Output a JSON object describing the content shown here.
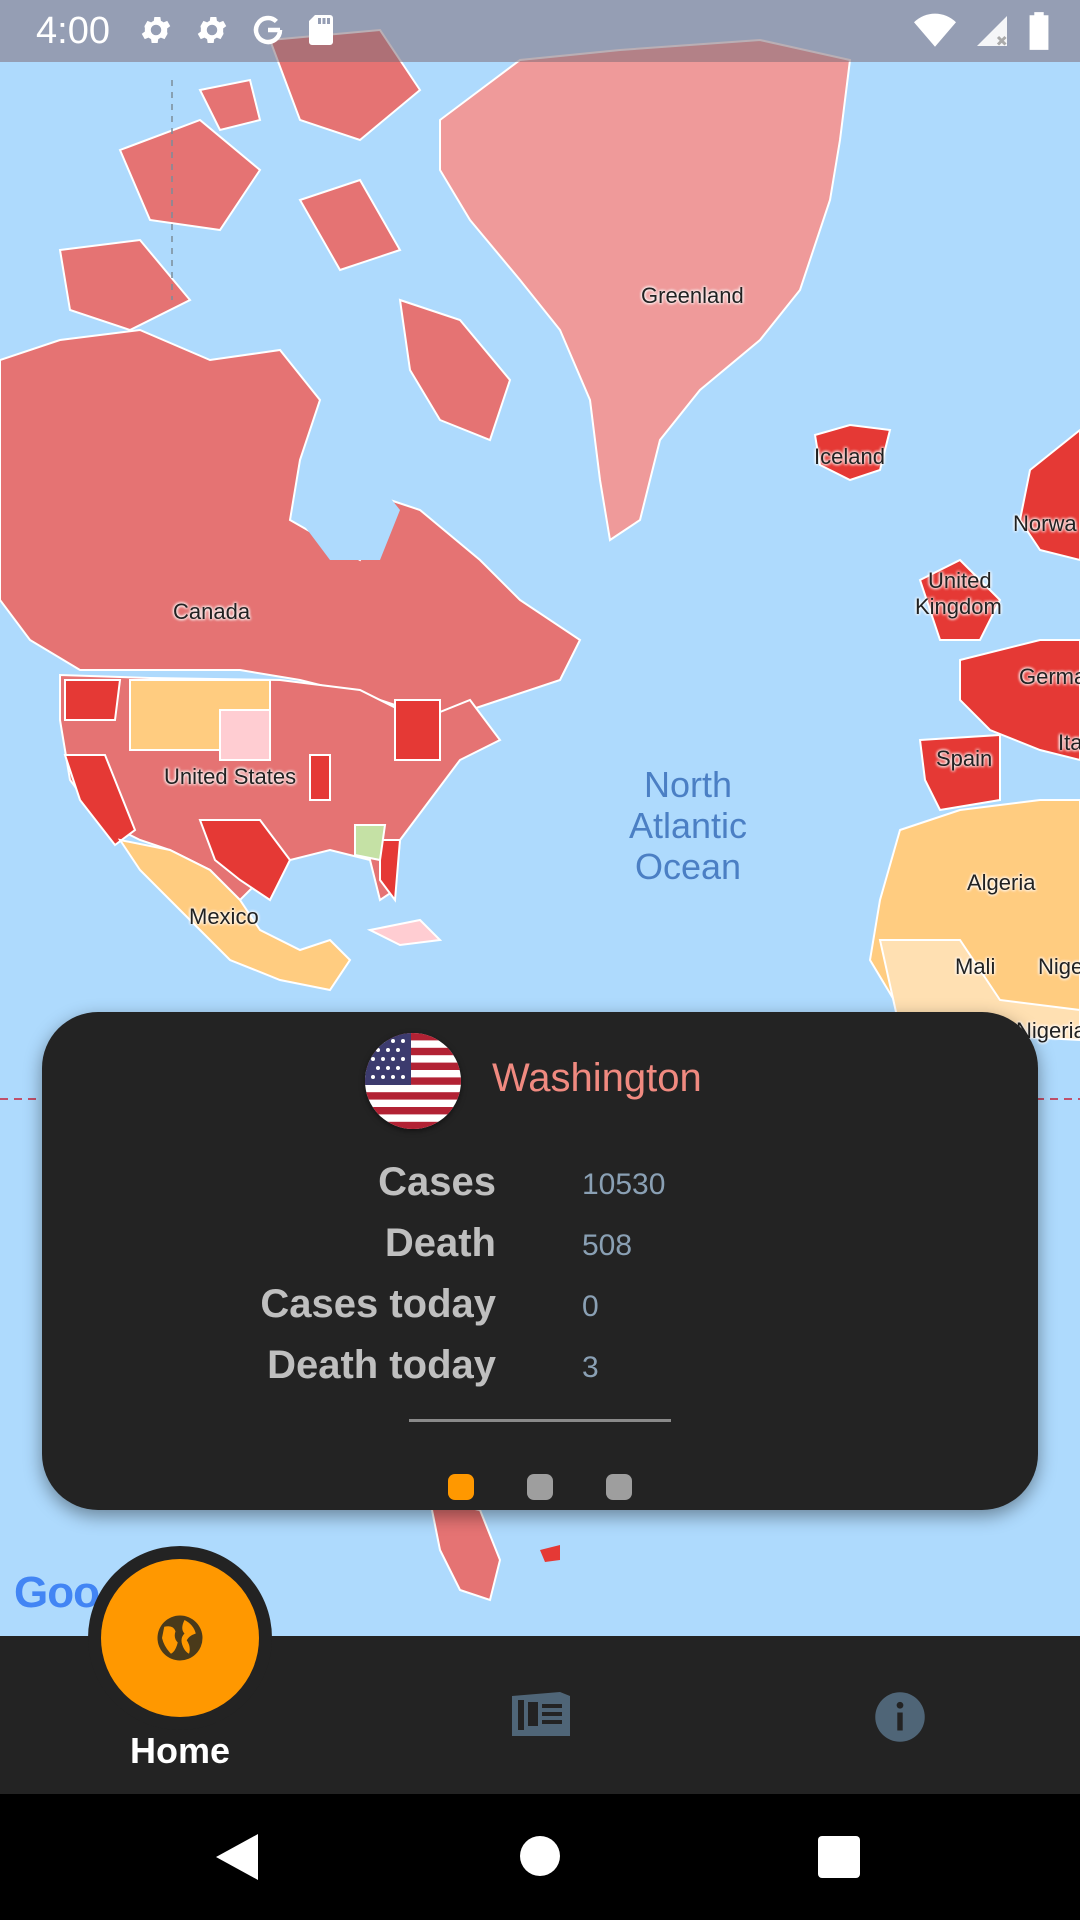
{
  "status_bar": {
    "time": "4:00",
    "icons_left": [
      "gear-icon",
      "gear-icon",
      "google-icon",
      "sd-card-icon"
    ],
    "icons_right": [
      "wifi-icon",
      "signal-icon",
      "battery-icon"
    ]
  },
  "map": {
    "labels": {
      "greenland": "Greenland",
      "iceland": "Iceland",
      "canada": "Canada",
      "united_states": "United States",
      "mexico": "Mexico",
      "uk_line1": "United",
      "uk_line2": "Kingdom",
      "norway": "Norwa",
      "germany": "Germa",
      "spain": "Spain",
      "italy": "Ita",
      "algeria": "Algeria",
      "mali": "Mali",
      "niger": "Nige",
      "nigeria": "Nigeria",
      "ocean_line1": "North",
      "ocean_line2": "Atlantic",
      "ocean_line3": "Ocean"
    },
    "logo_text": "Goo",
    "colors": {
      "water": "#aedafd",
      "high": "#e53935",
      "medium_high": "#e57373",
      "medium": "#ef9a9a",
      "low": "#ffcc80",
      "lowest": "#ffe0b2"
    }
  },
  "info_card": {
    "state_name": "Washington",
    "flag": "us-flag-icon",
    "stats": [
      {
        "label": "Cases",
        "value": "10530"
      },
      {
        "label": "Death",
        "value": "508"
      },
      {
        "label": "Cases today",
        "value": "0"
      },
      {
        "label": "Death today",
        "value": "3"
      }
    ],
    "page_indicator": {
      "total": 3,
      "active": 1,
      "active_color": "#ff9800",
      "inactive_color": "#9e9e9e"
    }
  },
  "bottom_nav": {
    "home_label": "Home",
    "items": [
      "globe-icon",
      "news-icon",
      "info-icon"
    ],
    "accent": "#ff9800"
  },
  "system_nav": [
    "back-icon",
    "home-icon",
    "recents-icon"
  ]
}
